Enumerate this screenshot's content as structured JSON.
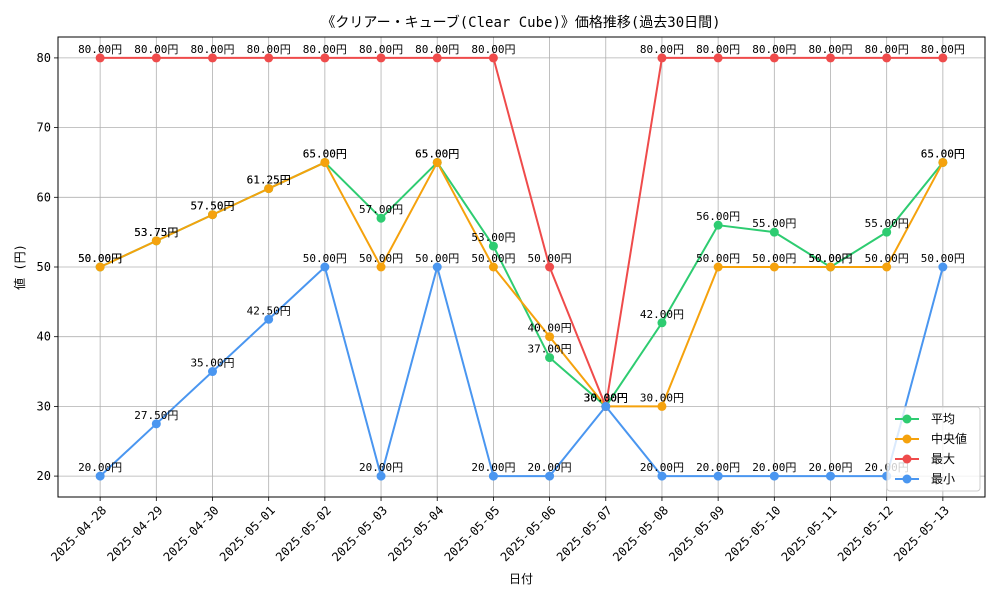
{
  "chart_data": {
    "type": "line",
    "title": "《クリアー・キューブ(Clear Cube)》価格推移(過去30日間)",
    "xlabel": "日付",
    "ylabel": "値 (円)",
    "categories": [
      "2025-04-28",
      "2025-04-29",
      "2025-04-30",
      "2025-05-01",
      "2025-05-02",
      "2025-05-03",
      "2025-05-04",
      "2025-05-05",
      "2025-05-06",
      "2025-05-07",
      "2025-05-08",
      "2025-05-09",
      "2025-05-10",
      "2025-05-11",
      "2025-05-12",
      "2025-05-13"
    ],
    "ylim": [
      17,
      83
    ],
    "yticks": [
      20,
      30,
      40,
      50,
      60,
      70,
      80
    ],
    "grid": true,
    "legend_position": "lower right",
    "series": [
      {
        "name": "平均",
        "color": "#2ecc71",
        "values": [
          50,
          53.75,
          57.5,
          61.25,
          65,
          57,
          65,
          53,
          37,
          30,
          42,
          56,
          55,
          50,
          55,
          65
        ],
        "labels": [
          "50.00円",
          "53.75円",
          "57.50円",
          "61.25円",
          "65.00円",
          "57.00円",
          "65.00円",
          "53.00円",
          "37.00円",
          "30.00円",
          "42.00円",
          "56.00円",
          "55.00円",
          "50.00円",
          "55.00円",
          "65.00円"
        ]
      },
      {
        "name": "中央値",
        "color": "#f5a20d",
        "values": [
          50,
          53.75,
          57.5,
          61.25,
          65,
          50,
          65,
          50,
          40,
          30,
          30,
          50,
          50,
          50,
          50,
          65
        ],
        "labels": [
          "50.00円",
          "53.75円",
          "57.50円",
          "61.25円",
          "65.00円",
          "50.00円",
          "65.00円",
          "50.00円",
          "40.00円",
          "30.00円",
          "30.00円",
          "50.00円",
          "50.00円",
          "50.00円",
          "50.00円",
          "65.00円"
        ]
      },
      {
        "name": "最大",
        "color": "#ef4b4b",
        "values": [
          80,
          80,
          80,
          80,
          80,
          80,
          80,
          80,
          50,
          30,
          80,
          80,
          80,
          80,
          80,
          80
        ],
        "labels": [
          "80.00円",
          "80.00円",
          "80.00円",
          "80.00円",
          "80.00円",
          "80.00円",
          "80.00円",
          "80.00円",
          "50.00円",
          "30.00円",
          "80.00円",
          "80.00円",
          "80.00円",
          "80.00円",
          "80.00円",
          "80.00円"
        ]
      },
      {
        "name": "最小",
        "color": "#4a96f0",
        "values": [
          20,
          27.5,
          35,
          42.5,
          50,
          20,
          50,
          20,
          20,
          30,
          20,
          20,
          20,
          20,
          20,
          50
        ],
        "labels": [
          "20.00円",
          "27.50円",
          "35.00円",
          "42.50円",
          "50.00円",
          "20.00円",
          "50.00円",
          "20.00円",
          "20.00円",
          "30.00円",
          "20.00円",
          "20.00円",
          "20.00円",
          "20.00円",
          "20.00円",
          "50.00円"
        ]
      }
    ]
  }
}
